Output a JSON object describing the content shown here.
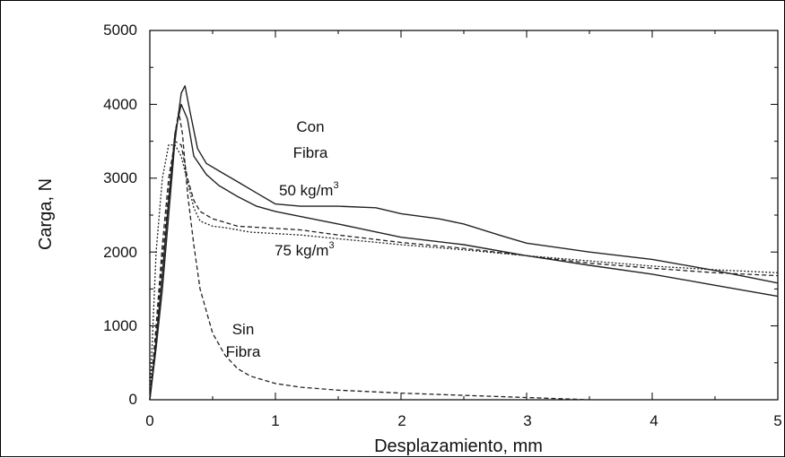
{
  "chart_data": {
    "type": "line",
    "title": "",
    "xlabel": "Desplazamiento, mm",
    "ylabel": "Carga, N",
    "xlim": [
      0,
      5
    ],
    "ylim": [
      0,
      5000
    ],
    "xticks": [
      "0",
      "1",
      "2",
      "3",
      "4",
      "5"
    ],
    "yticks": [
      "0",
      "1000",
      "2000",
      "3000",
      "4000",
      "5000"
    ],
    "grid": false,
    "legend": "none",
    "annotations": {
      "con_fibra_1": "Con",
      "con_fibra_2": "Fibra",
      "dose_50_base": "50 kg/m",
      "dose_50_exp": "3",
      "dose_75_base": "75 kg/m",
      "dose_75_exp": "3",
      "sin_fibra_1": "Sin",
      "sin_fibra_2": "Fibra"
    },
    "series": [
      {
        "style": "solid",
        "x": [
          0,
          0.05,
          0.1,
          0.15,
          0.2,
          0.25,
          0.28,
          0.32,
          0.38,
          0.45,
          0.55,
          0.7,
          0.85,
          1.0,
          1.2,
          1.5,
          1.8,
          2.0,
          2.3,
          2.5,
          2.8,
          3.0,
          3.5,
          4.0,
          4.5,
          5.0
        ],
        "y": [
          0,
          700,
          1500,
          2500,
          3500,
          4150,
          4250,
          3900,
          3400,
          3200,
          3100,
          2950,
          2800,
          2650,
          2620,
          2620,
          2600,
          2520,
          2450,
          2380,
          2220,
          2120,
          2000,
          1900,
          1750,
          1580
        ]
      },
      {
        "style": "solid",
        "x": [
          0,
          0.05,
          0.1,
          0.15,
          0.2,
          0.25,
          0.3,
          0.35,
          0.45,
          0.55,
          0.7,
          0.85,
          1.0,
          1.2,
          1.5,
          2.0,
          2.5,
          3.0,
          3.5,
          4.0,
          4.5,
          5.0
        ],
        "y": [
          0,
          800,
          1700,
          2700,
          3600,
          4000,
          3800,
          3300,
          3050,
          2900,
          2750,
          2620,
          2550,
          2480,
          2380,
          2200,
          2100,
          1950,
          1820,
          1700,
          1550,
          1400
        ]
      },
      {
        "style": "dashed",
        "x": [
          0,
          0.05,
          0.1,
          0.15,
          0.2,
          0.25,
          0.3,
          0.35,
          0.4,
          0.5,
          0.6,
          0.7,
          0.8,
          1.0,
          1.2,
          1.5,
          2.0,
          2.5,
          3.0,
          3.5,
          4.0,
          4.5,
          5.0
        ],
        "y": [
          0,
          1000,
          2100,
          3000,
          3500,
          3450,
          3000,
          2700,
          2550,
          2450,
          2400,
          2350,
          2340,
          2320,
          2300,
          2230,
          2130,
          2050,
          1950,
          1850,
          1780,
          1720,
          1680
        ]
      },
      {
        "style": "dotted",
        "x": [
          0,
          0.05,
          0.1,
          0.15,
          0.2,
          0.25,
          0.3,
          0.35,
          0.4,
          0.5,
          0.6,
          0.8,
          1.0,
          1.2,
          1.5,
          2.0,
          2.5,
          3.0,
          3.5,
          4.0,
          4.5,
          5.0
        ],
        "y": [
          0,
          2000,
          3000,
          3450,
          3450,
          3300,
          2950,
          2600,
          2420,
          2350,
          2330,
          2270,
          2250,
          2230,
          2180,
          2100,
          2030,
          1950,
          1880,
          1810,
          1760,
          1720
        ]
      },
      {
        "style": "dashed",
        "x": [
          0,
          0.05,
          0.1,
          0.15,
          0.2,
          0.23,
          0.26,
          0.3,
          0.35,
          0.4,
          0.5,
          0.6,
          0.7,
          0.8,
          1.0,
          1.2,
          1.5,
          2.0,
          2.5,
          3.0,
          3.5
        ],
        "y": [
          0,
          900,
          1900,
          2800,
          3600,
          3900,
          3600,
          2800,
          2100,
          1500,
          900,
          600,
          420,
          320,
          220,
          170,
          130,
          90,
          60,
          30,
          0
        ]
      }
    ]
  }
}
